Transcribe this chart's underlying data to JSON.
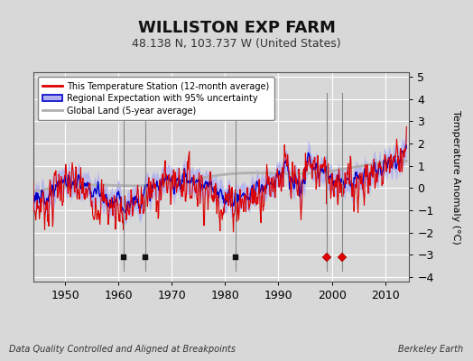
{
  "title": "WILLISTON EXP FARM",
  "subtitle": "48.138 N, 103.737 W (United States)",
  "ylabel": "Temperature Anomaly (°C)",
  "xlabel_note": "Data Quality Controlled and Aligned at Breakpoints",
  "credit": "Berkeley Earth",
  "ylim": [
    -4.2,
    5.2
  ],
  "xlim": [
    1944,
    2014.5
  ],
  "yticks": [
    -4,
    -3,
    -2,
    -1,
    0,
    1,
    2,
    3,
    4,
    5
  ],
  "xticks": [
    1950,
    1960,
    1970,
    1980,
    1990,
    2000,
    2010
  ],
  "bg_color": "#d8d8d8",
  "plot_bg_color": "#d8d8d8",
  "grid_color": "#ffffff",
  "station_color": "#dd0000",
  "regional_color": "#0000cc",
  "regional_fill_color": "#b0b0ee",
  "global_color": "#b0b0b0",
  "legend_items": [
    "This Temperature Station (12-month average)",
    "Regional Expectation with 95% uncertainty",
    "Global Land (5-year average)"
  ],
  "vline_years": [
    1961,
    1965,
    1982,
    1999,
    2002
  ],
  "vline_color": "#888888",
  "annotation_markers": {
    "station_move": {
      "years": [
        1999,
        2002
      ],
      "color": "#dd0000",
      "marker": "D"
    },
    "record_gap": {
      "years": [],
      "color": "#008800",
      "marker": "^"
    },
    "time_obs_change": {
      "years": [],
      "color": "#0000cc",
      "marker": "v"
    },
    "empirical_break": {
      "years": [
        1961,
        1965,
        1982
      ],
      "color": "#111111",
      "marker": "s"
    }
  },
  "marker_y": -3.1,
  "title_fontsize": 13,
  "subtitle_fontsize": 9,
  "tick_fontsize": 9,
  "ylabel_fontsize": 8
}
